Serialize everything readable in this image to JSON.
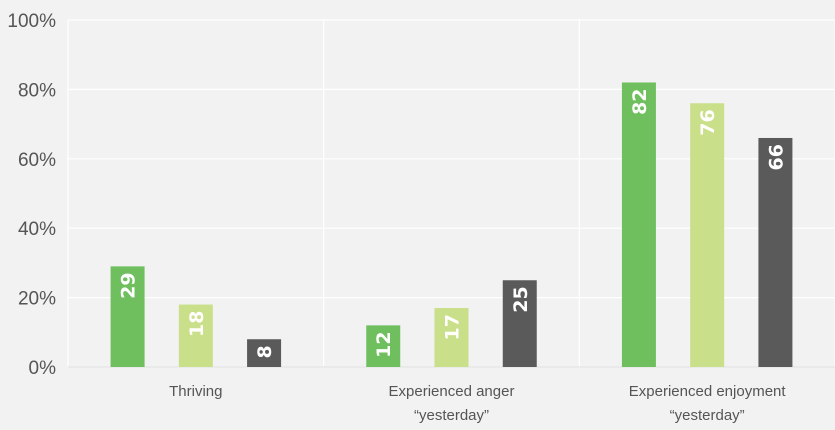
{
  "chart_data": {
    "type": "bar",
    "categories": [
      [
        "Thriving"
      ],
      [
        "Experienced anger",
        "“yesterday”"
      ],
      [
        "Experienced enjoyment",
        "“yesterday”"
      ]
    ],
    "series": [
      {
        "values": [
          29,
          12,
          82
        ],
        "color": "#6fbf5f"
      },
      {
        "values": [
          18,
          17,
          76
        ],
        "color": "#c9df8a"
      },
      {
        "values": [
          8,
          25,
          66
        ],
        "color": "#5a5a5a"
      }
    ],
    "ylim": [
      0,
      100
    ],
    "yticks": [
      0,
      20,
      40,
      60,
      80,
      100
    ],
    "ytick_labels": [
      "0%",
      "20%",
      "40%",
      "60%",
      "80%",
      "100%"
    ],
    "data_labels": true,
    "grid": true,
    "legend": "none",
    "xlabel": "",
    "ylabel": ""
  }
}
